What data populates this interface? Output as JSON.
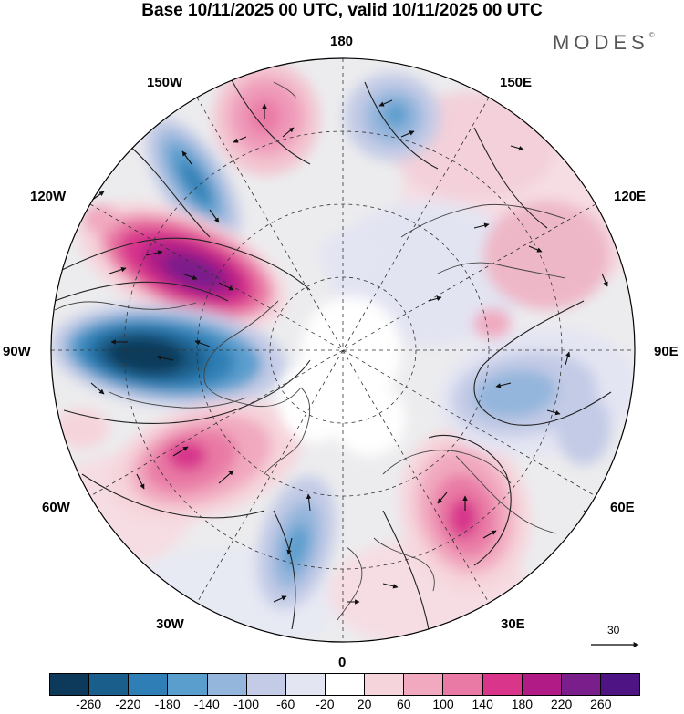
{
  "title": "Base 10/11/2025 00 UTC, valid 10/11/2025 00 UTC",
  "brand": "MODES",
  "brand_mark": "©",
  "longitude_labels": {
    "n180": "180",
    "w150": "150W",
    "e150": "150E",
    "w120": "120W",
    "e120": "120E",
    "w90": "90W",
    "e90": "90E",
    "w60": "60W",
    "e60": "60E",
    "w30": "30W",
    "e30": "30E",
    "s0": "0"
  },
  "reference_vector": {
    "value": "30",
    "icon": "arrow-right-icon"
  },
  "colorbar": {
    "ticks": [
      "-260",
      "-220",
      "-180",
      "-140",
      "-100",
      "-60",
      "-20",
      "20",
      "60",
      "100",
      "140",
      "180",
      "220",
      "260"
    ],
    "colors": [
      "#0d3a5a",
      "#1a5f8c",
      "#2f7fb6",
      "#5a9ecd",
      "#94b5dc",
      "#c3cbe6",
      "#e4e5f3",
      "#ffffff",
      "#f6d4dc",
      "#f1a9bf",
      "#e97aa5",
      "#d8358b",
      "#b01b86",
      "#7a1e8c",
      "#4f1483"
    ]
  },
  "anomalies": [
    {
      "id": "pink-150w",
      "value": 120,
      "color": "#ef9ab9"
    },
    {
      "id": "blue-160e",
      "value": -110,
      "color": "#7fa5d3"
    },
    {
      "id": "blue-135w",
      "value": -190,
      "color": "#2f7fb6"
    },
    {
      "id": "purple-110w",
      "value": 250,
      "color": "#7a1e8c"
    },
    {
      "id": "navy-90w",
      "value": -260,
      "color": "#0d3a5a"
    },
    {
      "id": "pink-60w",
      "value": 170,
      "color": "#e06aa0"
    },
    {
      "id": "blue-20w",
      "value": -110,
      "color": "#7fa5d3"
    },
    {
      "id": "pink-50e",
      "value": 170,
      "color": "#e06aa0"
    },
    {
      "id": "blue-85e",
      "value": -100,
      "color": "#8fb0da"
    },
    {
      "id": "pink-120e",
      "value": 50,
      "color": "#f4c8d3"
    },
    {
      "id": "pink-160e",
      "value": 60,
      "color": "#f3c2cf"
    }
  ]
}
